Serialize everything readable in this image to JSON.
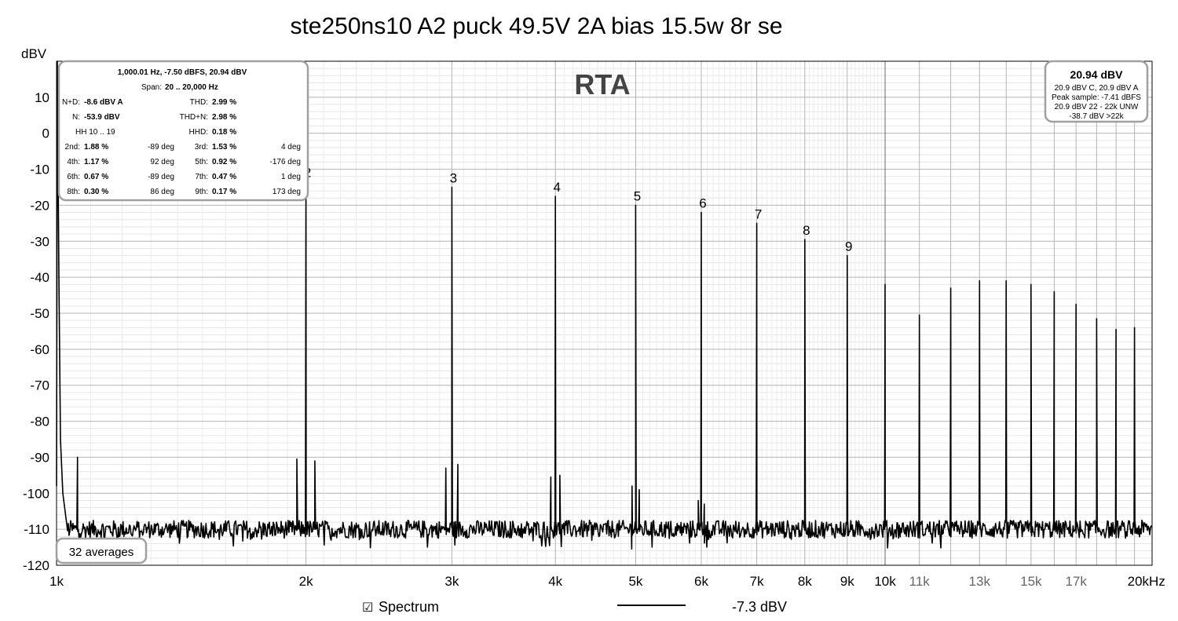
{
  "chart_data": {
    "type": "line",
    "title": "ste250ns10 A2 puck 49.5V 2A bias 15.5w 8r se",
    "ylabel": "dBV",
    "watermark": "RTA",
    "xscale": "log",
    "xlim": [
      1000,
      21000
    ],
    "ylim": [
      -120,
      20
    ],
    "y_ticks": [
      "10",
      "0",
      "-10",
      "-20",
      "-30",
      "-40",
      "-50",
      "-60",
      "-70",
      "-80",
      "-90",
      "-100",
      "-110",
      "-120"
    ],
    "y_tick_values": [
      10,
      0,
      -10,
      -20,
      -30,
      -40,
      -50,
      -60,
      -70,
      -80,
      -90,
      -100,
      -110,
      -120
    ],
    "x_major_labels": [
      {
        "f": 1000,
        "label": "1k"
      },
      {
        "f": 2000,
        "label": "2k"
      },
      {
        "f": 3000,
        "label": "3k"
      },
      {
        "f": 4000,
        "label": "4k"
      },
      {
        "f": 5000,
        "label": "5k"
      },
      {
        "f": 6000,
        "label": "6k"
      },
      {
        "f": 7000,
        "label": "7k"
      },
      {
        "f": 8000,
        "label": "8k"
      },
      {
        "f": 9000,
        "label": "9k"
      },
      {
        "f": 10000,
        "label": "10k"
      },
      {
        "f": 20000,
        "label": "20kHz"
      }
    ],
    "x_minor_labels": [
      {
        "f": 11000,
        "label": "11k"
      },
      {
        "f": 13000,
        "label": "13k"
      },
      {
        "f": 15000,
        "label": "15k"
      },
      {
        "f": 17000,
        "label": "17k"
      }
    ],
    "noise_floor_dbv": -110,
    "peaks": [
      {
        "f": 1000,
        "dbv": 20.9
      },
      {
        "f": 2000,
        "dbv": -13.5,
        "label": "2"
      },
      {
        "f": 3000,
        "dbv": -15.0,
        "label": "3"
      },
      {
        "f": 4000,
        "dbv": -17.5,
        "label": "4"
      },
      {
        "f": 5000,
        "dbv": -20.0,
        "label": "5"
      },
      {
        "f": 6000,
        "dbv": -22.0,
        "label": "6"
      },
      {
        "f": 7000,
        "dbv": -25.0,
        "label": "7"
      },
      {
        "f": 8000,
        "dbv": -29.5,
        "label": "8"
      },
      {
        "f": 9000,
        "dbv": -34.0,
        "label": "9"
      },
      {
        "f": 10000,
        "dbv": -42.0
      },
      {
        "f": 11000,
        "dbv": -50.5
      },
      {
        "f": 12000,
        "dbv": -43.0
      },
      {
        "f": 13000,
        "dbv": -41.0
      },
      {
        "f": 14000,
        "dbv": -41.0
      },
      {
        "f": 15000,
        "dbv": -42.0
      },
      {
        "f": 16000,
        "dbv": -44.0
      },
      {
        "f": 17000,
        "dbv": -47.5
      },
      {
        "f": 18000,
        "dbv": -51.5
      },
      {
        "f": 19000,
        "dbv": -54.5
      },
      {
        "f": 20000,
        "dbv": -54.0
      }
    ],
    "sidebands": [
      {
        "f": 1060,
        "dbv": -90
      },
      {
        "f": 1950,
        "dbv": -90.5
      },
      {
        "f": 2050,
        "dbv": -91
      },
      {
        "f": 2950,
        "dbv": -93
      },
      {
        "f": 3050,
        "dbv": -92
      },
      {
        "f": 3950,
        "dbv": -95.5
      },
      {
        "f": 4050,
        "dbv": -95
      },
      {
        "f": 4950,
        "dbv": -98
      },
      {
        "f": 5050,
        "dbv": -99
      },
      {
        "f": 5950,
        "dbv": -102
      },
      {
        "f": 6050,
        "dbv": -103
      }
    ]
  },
  "info_box": {
    "header": "1,000.01 Hz, -7.50 dBFS, 20.94 dBV",
    "span_label": "Span:",
    "span_value": "20 .. 20,000 Hz",
    "rows": [
      {
        "l1": "N+D:",
        "v1": "-8.6 dBV A",
        "m": "",
        "l2": "THD:",
        "v2": "2.99 %",
        "r": ""
      },
      {
        "l1": "N:",
        "v1": "-53.9 dBV",
        "m": "",
        "l2": "THD+N:",
        "v2": "2.98 %",
        "r": ""
      },
      {
        "l1": "HH 10 .. 19",
        "v1": "",
        "m": "",
        "l2": "HHD:",
        "v2": "0.18 %",
        "r": ""
      },
      {
        "l1": "2nd:",
        "v1": "1.88 %",
        "m": "-89 deg",
        "l2": "3rd:",
        "v2": "1.53 %",
        "r": "4 deg"
      },
      {
        "l1": "4th:",
        "v1": "1.17 %",
        "m": "92 deg",
        "l2": "5th:",
        "v2": "0.92 %",
        "r": "-176 deg"
      },
      {
        "l1": "6th:",
        "v1": "0.67 %",
        "m": "-89 deg",
        "l2": "7th:",
        "v2": "0.47 %",
        "r": "1 deg"
      },
      {
        "l1": "8th:",
        "v1": "0.30 %",
        "m": "86 deg",
        "l2": "9th:",
        "v2": "0.17 %",
        "r": "173 deg"
      }
    ]
  },
  "level_box": {
    "value": "20.94 dBV",
    "lines": [
      "20.9 dBV C, 20.9 dBV A",
      "Peak sample: -7.41 dBFS",
      "20.9 dBV 22 - 22k UNW",
      "-38.7 dBV >22k"
    ]
  },
  "averages_label": "32 averages",
  "legend": {
    "checkbox": "☑",
    "label": "Spectrum",
    "value": "-7.3 dBV",
    "color": "#000000"
  }
}
